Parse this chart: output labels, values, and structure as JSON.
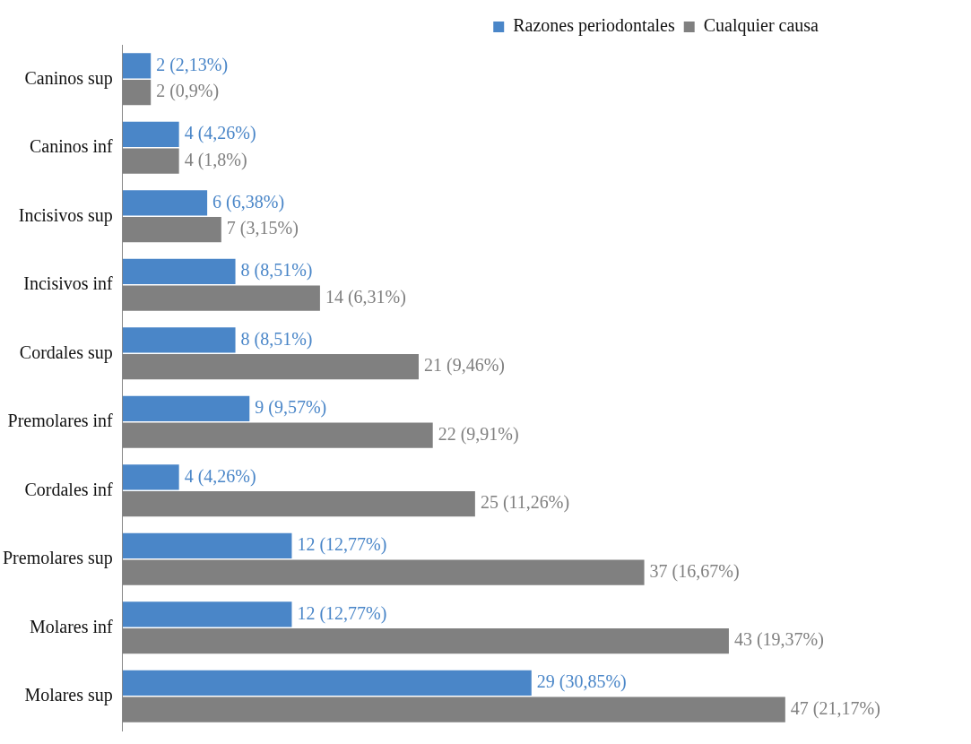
{
  "chart_data": {
    "type": "bar",
    "orientation": "horizontal",
    "categories": [
      "Caninos sup",
      "Caninos inf",
      "Incisivos sup",
      "Incisivos inf",
      "Cordales sup",
      "Premolares inf",
      "Cordales inf",
      "Premolares sup",
      "Molares inf",
      "Molares sup"
    ],
    "series": [
      {
        "name": "Razones periodontales",
        "color": "#4a86c8",
        "values": [
          2,
          4,
          6,
          8,
          8,
          9,
          4,
          12,
          12,
          29
        ],
        "value_labels": [
          "2 (2,13%)",
          "4 (4,26%)",
          "6 (6,38%)",
          "8 (8,51%)",
          "8 (8,51%)",
          "9 (9,57%)",
          "4 (4,26%)",
          "12 (12,77%)",
          "12 (12,77%)",
          "29 (30,85%)"
        ]
      },
      {
        "name": "Cualquier causa",
        "color": "#808080",
        "values": [
          2,
          4,
          7,
          14,
          21,
          22,
          25,
          37,
          43,
          47
        ],
        "value_labels": [
          "2 (0,9%)",
          "4 (1,8%)",
          "7 (3,15%)",
          "14 (6,31%)",
          "21 (9,46%)",
          "22 (9,91%)",
          "25 (11,26%)",
          "37 (16,67%)",
          "43 (19,37%)",
          "47 (21,17%)"
        ]
      }
    ],
    "tick_labels": "y",
    "legend": "top right"
  }
}
